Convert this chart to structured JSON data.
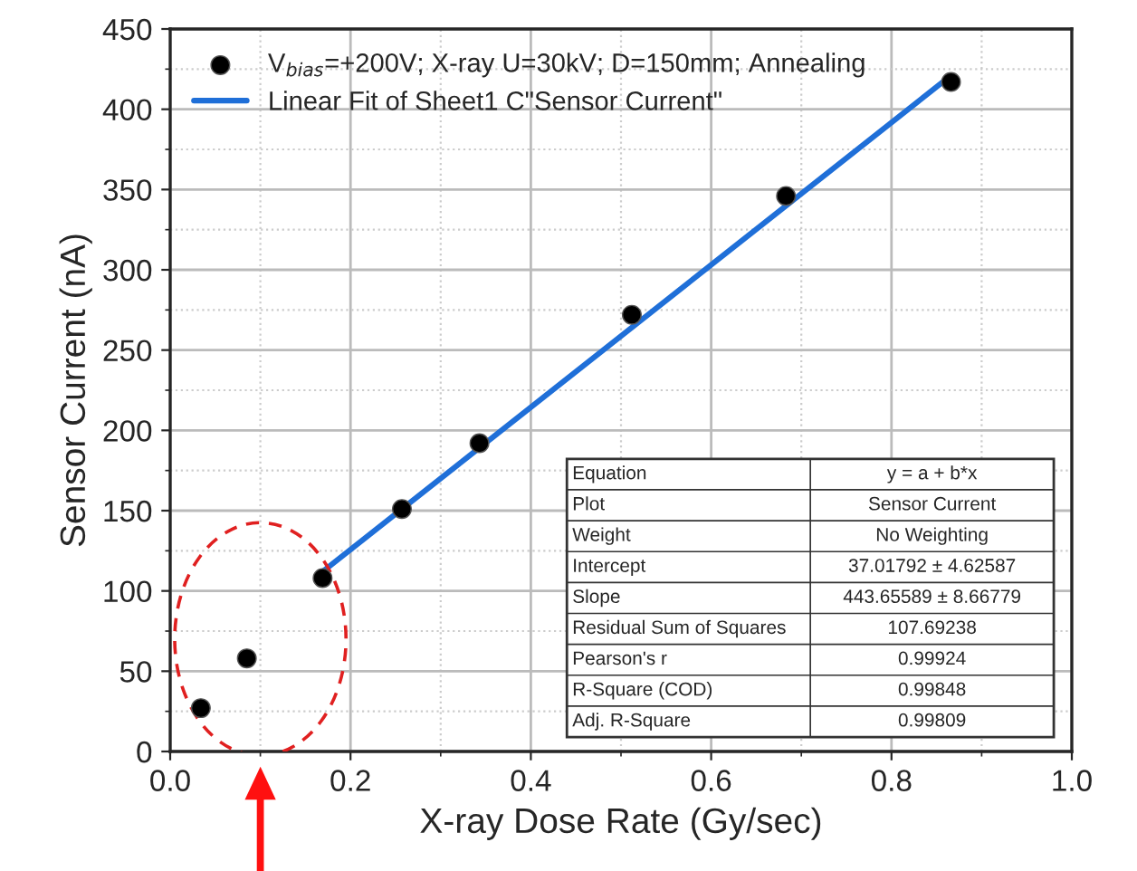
{
  "chart_data": {
    "type": "scatter",
    "xlabel": "X-ray Dose Rate (Gy/sec)",
    "ylabel": "Sensor Current (nA)",
    "xlim": [
      0,
      1
    ],
    "ylim": [
      0,
      450
    ],
    "xticks": [
      {
        "value": 0,
        "label": "0.0"
      },
      {
        "value": 0.2,
        "label": "0.2"
      },
      {
        "value": 0.4,
        "label": "0.4"
      },
      {
        "value": 0.6,
        "label": "0.6"
      },
      {
        "value": 0.8,
        "label": "0.8"
      },
      {
        "value": 1,
        "label": "1.0"
      }
    ],
    "yticks": [
      0,
      50,
      100,
      150,
      200,
      250,
      300,
      350,
      400,
      450
    ],
    "grid": true,
    "legend": "top left",
    "series": [
      {
        "name": "V$_{bias}$=+200V; X-ray U=30kV; D=150mm; Annealing",
        "marker": "circle",
        "color": "#000000",
        "x": [
          0.034,
          0.085,
          0.169,
          0.257,
          0.343,
          0.512,
          0.683,
          0.866
        ],
        "values": [
          27,
          58,
          108,
          151,
          192,
          272,
          346,
          417
        ]
      },
      {
        "name": "Linear Fit of Sheet1 C\"Sensor Current\"",
        "type": "line",
        "marker": "none",
        "color": "#1f6fd8",
        "x": [
          0.169,
          0.866
        ],
        "values": [
          112,
          421
        ]
      }
    ],
    "annotations": [
      "Equation",
      "y = a + b*x",
      "Plot",
      "Sensor Current",
      "Weight",
      "No Weighting",
      "Intercept",
      "37.01792 ± 4.62587",
      "Slope",
      "443.65589 ± 8.66779",
      "Residual Sum of Squares",
      "107.69238",
      "Pearson's r",
      "0.99924",
      "R-Square (COD)",
      "0.99848",
      "Adj. R-Square",
      "0.99809"
    ]
  }
}
